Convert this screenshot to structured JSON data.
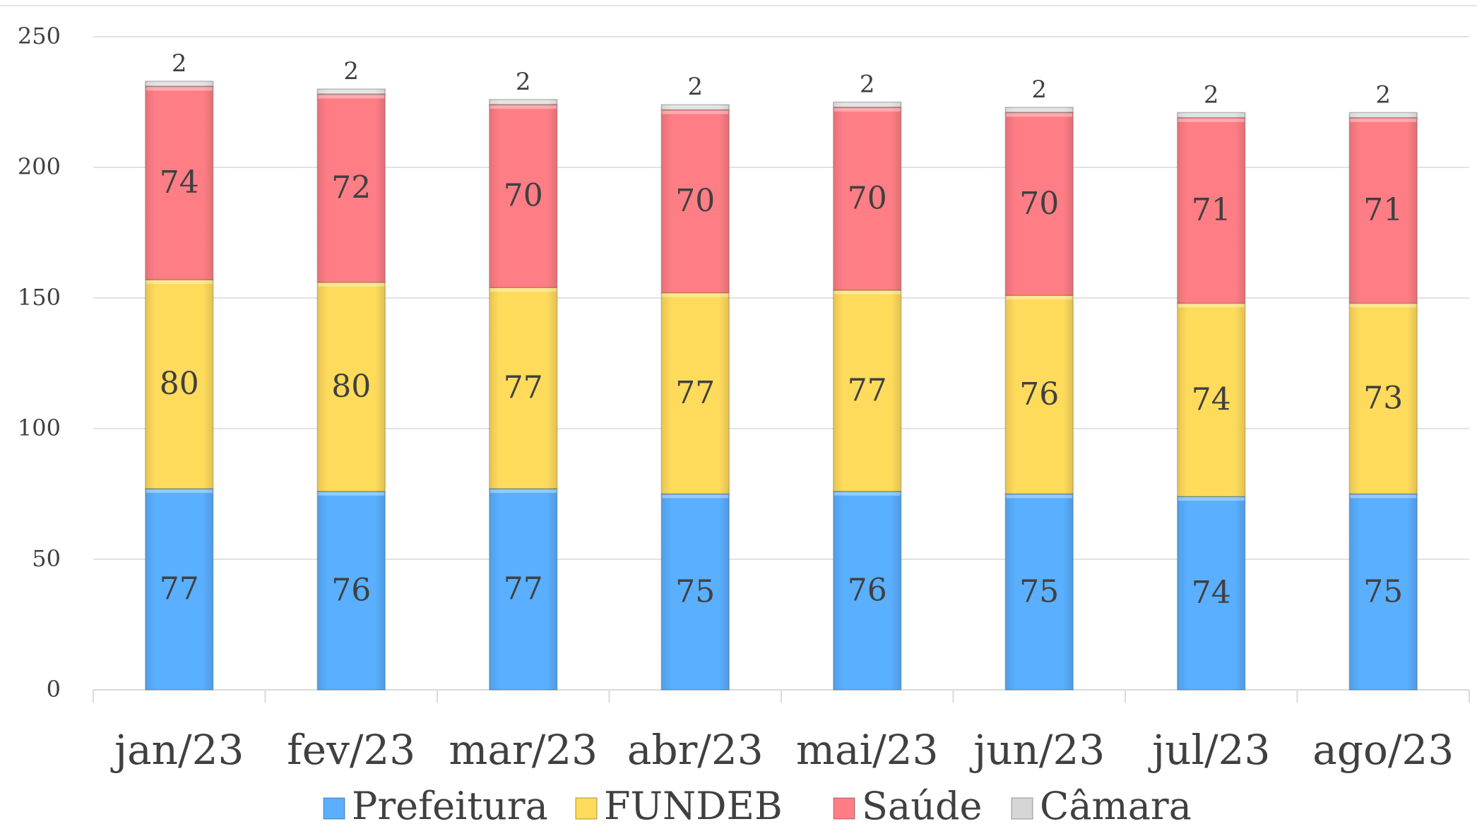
{
  "chart_data": {
    "type": "bar",
    "stacked": true,
    "categories": [
      "jan/23",
      "fev/23",
      "mar/23",
      "abr/23",
      "mai/23",
      "jun/23",
      "jul/23",
      "ago/23"
    ],
    "series": [
      {
        "name": "Prefeitura",
        "color": "#5AAFFF",
        "values": [
          77,
          76,
          77,
          75,
          76,
          75,
          74,
          75
        ]
      },
      {
        "name": "FUNDEB",
        "color": "#FFDB5C",
        "values": [
          80,
          80,
          77,
          77,
          77,
          76,
          74,
          73
        ]
      },
      {
        "name": "Saúde",
        "color": "#FF7E86",
        "values": [
          74,
          72,
          70,
          70,
          70,
          70,
          71,
          71
        ]
      },
      {
        "name": "Câmara",
        "color": "#D6D6D6",
        "values": [
          2,
          2,
          2,
          2,
          2,
          2,
          2,
          2
        ]
      }
    ],
    "ylim": [
      0,
      250
    ],
    "yticks": [
      "0",
      "50",
      "100",
      "150",
      "200",
      "250"
    ],
    "grid": true,
    "legend_position": "bottom"
  }
}
